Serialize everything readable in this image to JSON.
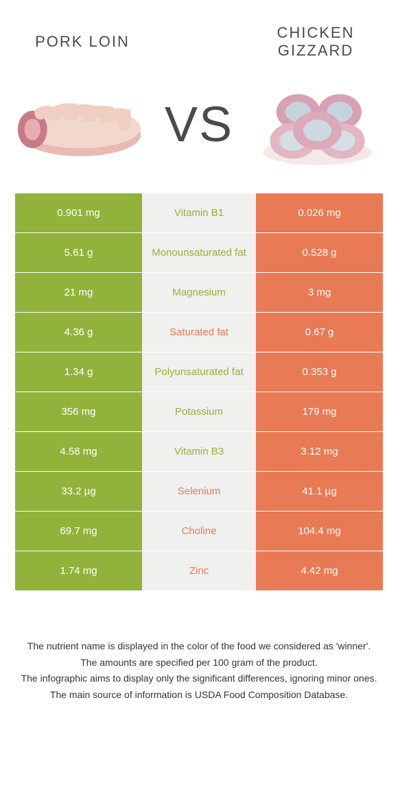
{
  "colors": {
    "green": "#91b33c",
    "orange": "#e87a55",
    "mid_bg": "#f0f0ee",
    "text_dark": "#4a4a4a"
  },
  "header": {
    "left_title": "PORK LOIN",
    "right_title": "CHICKEN GIZZARD",
    "vs": "VS"
  },
  "rows": [
    {
      "left": "0.901 mg",
      "nutrient": "Vitamin B1",
      "right": "0.026 mg",
      "winner": "left"
    },
    {
      "left": "5.61 g",
      "nutrient": "Monounsaturated fat",
      "right": "0.528 g",
      "winner": "left"
    },
    {
      "left": "21 mg",
      "nutrient": "Magnesium",
      "right": "3 mg",
      "winner": "left"
    },
    {
      "left": "4.36 g",
      "nutrient": "Saturated fat",
      "right": "0.67 g",
      "winner": "right"
    },
    {
      "left": "1.34 g",
      "nutrient": "Polyunsaturated fat",
      "right": "0.353 g",
      "winner": "left"
    },
    {
      "left": "356 mg",
      "nutrient": "Potassium",
      "right": "179 mg",
      "winner": "left"
    },
    {
      "left": "4.58 mg",
      "nutrient": "Vitamin B3",
      "right": "3.12 mg",
      "winner": "left"
    },
    {
      "left": "33.2 µg",
      "nutrient": "Selenium",
      "right": "41.1 µg",
      "winner": "right"
    },
    {
      "left": "69.7 mg",
      "nutrient": "Choline",
      "right": "104.4 mg",
      "winner": "right"
    },
    {
      "left": "1.74 mg",
      "nutrient": "Zinc",
      "right": "4.42 mg",
      "winner": "right"
    }
  ],
  "footer": {
    "line1": "The nutrient name is displayed in the color of the food we considered as 'winner'.",
    "line2": "The amounts are specified per 100 gram of the product.",
    "line3": "The infographic aims to display only the significant differences, ignoring minor ones.",
    "line4": "The main source of information is USDA Food Composition Database."
  }
}
